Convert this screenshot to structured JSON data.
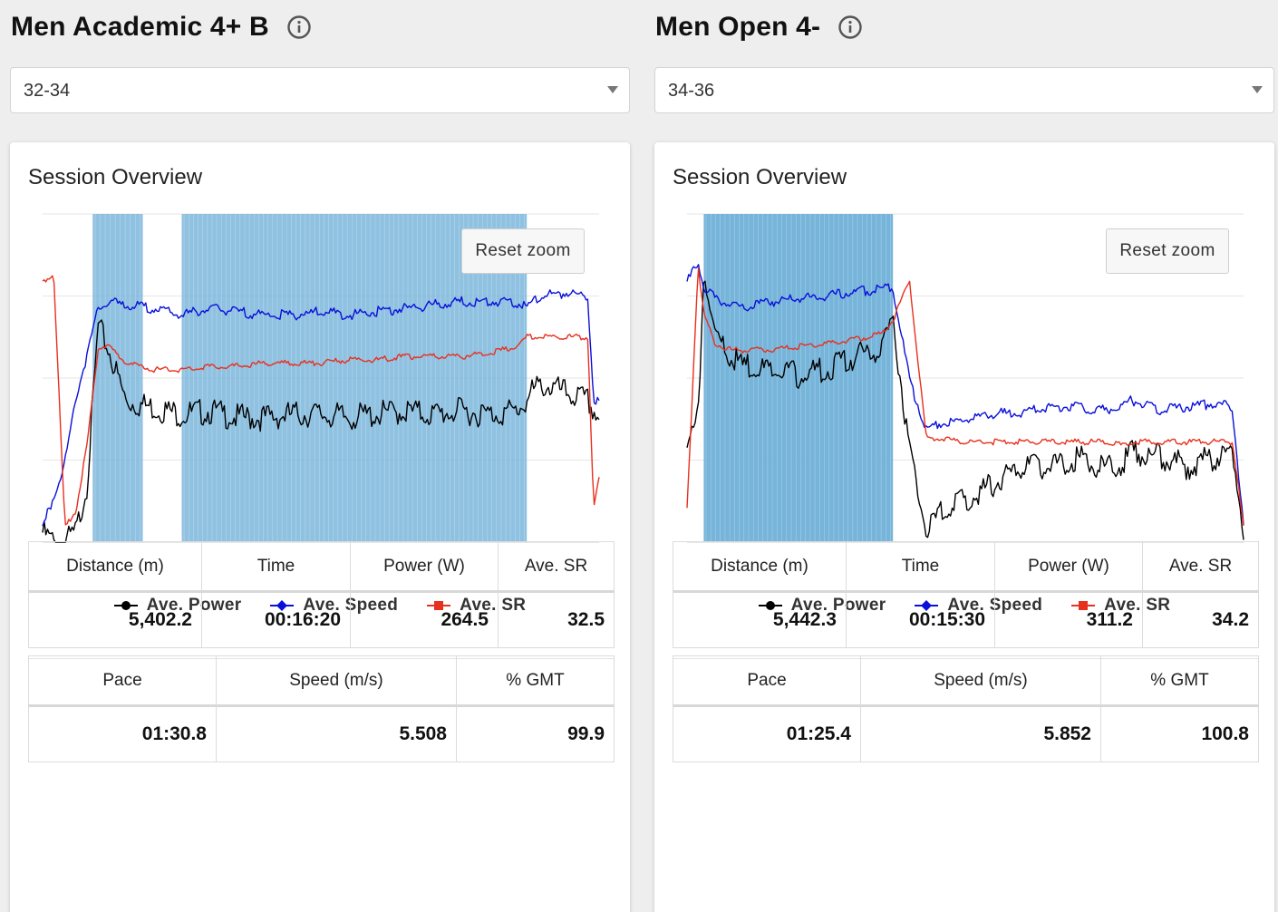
{
  "panels": [
    {
      "title": "Men Academic 4+ B",
      "select_value": "32-34",
      "card_title": "Session Overview",
      "reset_zoom": "Reset zoom",
      "legend": [
        "Ave. Power",
        "Ave. Speed",
        "Ave. SR"
      ],
      "table1": {
        "headers": [
          "Distance (m)",
          "Time",
          "Power (W)",
          "Ave. SR"
        ],
        "values": [
          "5,402.2",
          "00:16:20",
          "264.5",
          "32.5"
        ]
      },
      "table2": {
        "headers": [
          "Pace",
          "Speed (m/s)",
          "% GMT"
        ],
        "values": [
          "01:30.8",
          "5.508",
          "99.9"
        ]
      }
    },
    {
      "title": "Men Open 4-",
      "select_value": "34-36",
      "card_title": "Session Overview",
      "reset_zoom": "Reset zoom",
      "legend": [
        "Ave. Power",
        "Ave. Speed",
        "Ave. SR"
      ],
      "table1": {
        "headers": [
          "Distance (m)",
          "Time",
          "Power (W)",
          "Ave. SR"
        ],
        "values": [
          "5,442.3",
          "00:15:30",
          "311.2",
          "34.2"
        ]
      },
      "table2": {
        "headers": [
          "Pace",
          "Speed (m/s)",
          "% GMT"
        ],
        "values": [
          "01:25.4",
          "5.852",
          "100.8"
        ]
      }
    }
  ],
  "colors": {
    "power": "#000000",
    "speed": "#0a10d8",
    "sr": "#e8301e",
    "band": "#6fb0d8"
  },
  "chart_data": [
    {
      "type": "line",
      "x": [
        0,
        2,
        4,
        6,
        8,
        10,
        12,
        15,
        20,
        25,
        30,
        35,
        40,
        45,
        50,
        55,
        60,
        65,
        70,
        75,
        80,
        85,
        87,
        88,
        90,
        95,
        98,
        99,
        100
      ],
      "series": [
        {
          "name": "Ave. Power",
          "values": [
            5,
            2,
            2,
            5,
            20,
            68,
            60,
            45,
            43,
            41,
            42,
            40,
            40,
            41,
            41,
            40,
            41,
            42,
            41,
            42,
            41,
            42,
            45,
            48,
            50,
            47,
            45,
            42,
            40
          ]
        },
        {
          "name": "Ave. Speed",
          "values": [
            5,
            15,
            25,
            45,
            58,
            72,
            74,
            73,
            72,
            70,
            72,
            71,
            70,
            70,
            71,
            70,
            71,
            72,
            73,
            74,
            74,
            74,
            72,
            74,
            76,
            77,
            75,
            44,
            43
          ]
        },
        {
          "name": "Ave. SR",
          "values": [
            80,
            82,
            5,
            10,
            30,
            60,
            60,
            55,
            53,
            53,
            54,
            54,
            55,
            55,
            55,
            56,
            56,
            57,
            57,
            57,
            58,
            60,
            63,
            63,
            63,
            63,
            63,
            10,
            20
          ]
        }
      ],
      "bands": [
        [
          9,
          18
        ],
        [
          25,
          87
        ]
      ]
    },
    {
      "type": "line",
      "x": [
        0,
        2,
        3,
        5,
        8,
        10,
        15,
        20,
        25,
        30,
        35,
        37,
        40,
        43,
        45,
        50,
        55,
        60,
        65,
        70,
        75,
        78,
        80,
        85,
        90,
        95,
        98,
        100
      ],
      "series": [
        {
          "name": "Ave. Power",
          "values": [
            30,
            40,
            85,
            65,
            58,
            56,
            54,
            53,
            55,
            58,
            62,
            70,
            30,
            5,
            10,
            15,
            20,
            25,
            25,
            28,
            25,
            25,
            30,
            28,
            25,
            28,
            30,
            5
          ]
        },
        {
          "name": "Ave. Speed",
          "values": [
            80,
            86,
            78,
            75,
            73,
            72,
            74,
            75,
            76,
            77,
            78,
            78,
            50,
            35,
            37,
            38,
            40,
            40,
            42,
            42,
            41,
            42,
            44,
            41,
            42,
            43,
            42,
            5
          ]
        },
        {
          "name": "Ave. SR",
          "values": [
            10,
            85,
            70,
            61,
            59,
            59,
            59,
            60,
            61,
            62,
            64,
            68,
            80,
            32,
            32,
            31,
            31,
            31,
            31,
            31,
            31,
            30,
            31,
            31,
            31,
            31,
            31,
            5
          ]
        }
      ],
      "bands": [
        [
          3,
          37
        ]
      ]
    }
  ]
}
